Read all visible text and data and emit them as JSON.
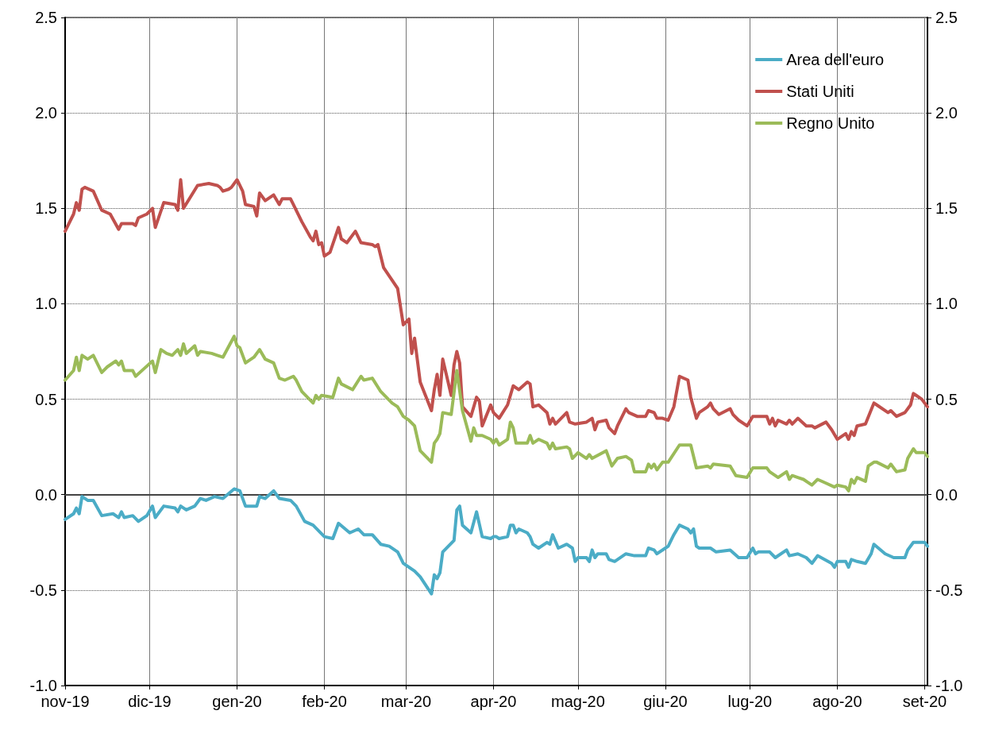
{
  "chart_data": {
    "type": "line",
    "xlim": [
      "2019-11-01",
      "2020-09-02"
    ],
    "xticks": [
      {
        "value": "2019-11-01",
        "label": "nov-19"
      },
      {
        "value": "2019-12-01",
        "label": "dic-19"
      },
      {
        "value": "2020-01-01",
        "label": "gen-20"
      },
      {
        "value": "2020-02-01",
        "label": "feb-20"
      },
      {
        "value": "2020-03-01",
        "label": "mar-20"
      },
      {
        "value": "2020-04-01",
        "label": "apr-20"
      },
      {
        "value": "2020-05-01",
        "label": "mag-20"
      },
      {
        "value": "2020-06-01",
        "label": "giu-20"
      },
      {
        "value": "2020-07-01",
        "label": "lug-20"
      },
      {
        "value": "2020-08-01",
        "label": "ago-20"
      },
      {
        "value": "2020-09-01",
        "label": "set-20"
      }
    ],
    "ylim": [
      -1,
      2.5
    ],
    "yticks": [
      {
        "value": -1,
        "label": "-1.0"
      },
      -0.5,
      {
        "value": 0,
        "label": "0.0"
      },
      0.5,
      {
        "value": 1,
        "label": "1.0"
      },
      1.5,
      {
        "value": 2,
        "label": "2.0"
      },
      2.5
    ],
    "y2lim": [
      -1,
      2.5
    ],
    "y2ticks": [
      {
        "value": -1,
        "label": "-1.0"
      },
      -0.5,
      {
        "value": 0,
        "label": "0.0"
      },
      0.5,
      {
        "value": 1,
        "label": "1.0"
      },
      1.5,
      {
        "value": 2,
        "label": "2.0"
      },
      2.5
    ],
    "grid": true,
    "legend": "top right",
    "marker": "none",
    "line_style": "solid",
    "series": [
      {
        "name": "Area dell'euro",
        "color": "#4bacc6",
        "x": [
          "2019-11-01",
          "2019-11-04",
          "2019-11-05",
          "2019-11-06",
          "2019-11-07",
          "2019-11-09",
          "2019-11-11",
          "2019-11-14",
          "2019-11-18",
          "2019-11-20",
          "2019-11-21",
          "2019-11-22",
          "2019-11-25",
          "2019-11-27",
          "2019-11-30",
          "2019-12-02",
          "2019-12-03",
          "2019-12-06",
          "2019-12-10",
          "2019-12-11",
          "2019-12-12",
          "2019-12-14",
          "2019-12-17",
          "2019-12-19",
          "2019-12-21",
          "2019-12-24",
          "2019-12-27",
          "2019-12-31",
          "2020-01-02",
          "2020-01-04",
          "2020-01-08",
          "2020-01-09",
          "2020-01-11",
          "2020-01-14",
          "2020-01-16",
          "2020-01-20",
          "2020-01-22",
          "2020-01-25",
          "2020-01-28",
          "2020-01-30",
          "2020-02-01",
          "2020-02-04",
          "2020-02-06",
          "2020-02-10",
          "2020-02-13",
          "2020-02-15",
          "2020-02-18",
          "2020-02-21",
          "2020-02-24",
          "2020-02-27",
          "2020-02-29",
          "2020-03-04",
          "2020-03-06",
          "2020-03-10",
          "2020-03-11",
          "2020-03-12",
          "2020-03-13",
          "2020-03-14",
          "2020-03-18",
          "2020-03-19",
          "2020-03-20",
          "2020-03-21",
          "2020-03-24",
          "2020-03-26",
          "2020-03-28",
          "2020-03-31",
          "2020-04-01",
          "2020-04-02",
          "2020-04-03",
          "2020-04-06",
          "2020-04-07",
          "2020-04-08",
          "2020-04-09",
          "2020-04-10",
          "2020-04-13",
          "2020-04-14",
          "2020-04-15",
          "2020-04-17",
          "2020-04-20",
          "2020-04-21",
          "2020-04-22",
          "2020-04-24",
          "2020-04-27",
          "2020-04-29",
          "2020-04-30",
          "2020-05-01",
          "2020-05-04",
          "2020-05-05",
          "2020-05-06",
          "2020-05-07",
          "2020-05-08",
          "2020-05-11",
          "2020-05-12",
          "2020-05-14",
          "2020-05-18",
          "2020-05-21",
          "2020-05-25",
          "2020-05-26",
          "2020-05-28",
          "2020-05-29",
          "2020-06-01",
          "2020-06-02",
          "2020-06-04",
          "2020-06-06",
          "2020-06-09",
          "2020-06-10",
          "2020-06-11",
          "2020-06-12",
          "2020-06-13",
          "2020-06-17",
          "2020-06-19",
          "2020-06-24",
          "2020-06-27",
          "2020-06-30",
          "2020-07-02",
          "2020-07-03",
          "2020-07-04",
          "2020-07-08",
          "2020-07-10",
          "2020-07-14",
          "2020-07-15",
          "2020-07-18",
          "2020-07-21",
          "2020-07-23",
          "2020-07-25",
          "2020-07-30",
          "2020-07-31",
          "2020-08-01",
          "2020-08-04",
          "2020-08-05",
          "2020-08-06",
          "2020-08-08",
          "2020-08-11",
          "2020-08-13",
          "2020-08-14",
          "2020-08-18",
          "2020-08-21",
          "2020-08-25",
          "2020-08-26",
          "2020-08-28",
          "2020-09-01",
          "2020-09-02"
        ],
        "values": [
          -0.13,
          -0.1,
          -0.07,
          -0.1,
          -0.01,
          -0.03,
          -0.03,
          -0.11,
          -0.1,
          -0.12,
          -0.09,
          -0.12,
          -0.11,
          -0.14,
          -0.11,
          -0.06,
          -0.12,
          -0.06,
          -0.07,
          -0.09,
          -0.06,
          -0.08,
          -0.06,
          -0.02,
          -0.03,
          -0.01,
          -0.02,
          0.03,
          0.02,
          -0.06,
          -0.06,
          -0.01,
          -0.02,
          0.02,
          -0.02,
          -0.03,
          -0.06,
          -0.14,
          -0.16,
          -0.19,
          -0.22,
          -0.23,
          -0.15,
          -0.2,
          -0.18,
          -0.21,
          -0.21,
          -0.26,
          -0.27,
          -0.3,
          -0.36,
          -0.4,
          -0.43,
          -0.52,
          -0.42,
          -0.44,
          -0.41,
          -0.3,
          -0.24,
          -0.08,
          -0.06,
          -0.16,
          -0.2,
          -0.09,
          -0.22,
          -0.23,
          -0.22,
          -0.22,
          -0.23,
          -0.22,
          -0.16,
          -0.16,
          -0.2,
          -0.18,
          -0.2,
          -0.22,
          -0.26,
          -0.28,
          -0.25,
          -0.26,
          -0.21,
          -0.28,
          -0.26,
          -0.28,
          -0.35,
          -0.33,
          -0.33,
          -0.35,
          -0.29,
          -0.33,
          -0.31,
          -0.31,
          -0.34,
          -0.35,
          -0.31,
          -0.32,
          -0.32,
          -0.28,
          -0.29,
          -0.31,
          -0.28,
          -0.27,
          -0.21,
          -0.16,
          -0.18,
          -0.2,
          -0.18,
          -0.27,
          -0.28,
          -0.28,
          -0.3,
          -0.29,
          -0.33,
          -0.33,
          -0.28,
          -0.31,
          -0.3,
          -0.3,
          -0.33,
          -0.29,
          -0.32,
          -0.31,
          -0.33,
          -0.36,
          -0.32,
          -0.36,
          -0.38,
          -0.35,
          -0.35,
          -0.38,
          -0.34,
          -0.35,
          -0.36,
          -0.31,
          -0.26,
          -0.31,
          -0.33,
          -0.33,
          -0.29,
          -0.25,
          -0.25,
          -0.27
        ]
      },
      {
        "name": "Stati Uniti",
        "color": "#c0504d",
        "x": [
          "2019-11-01",
          "2019-11-04",
          "2019-11-05",
          "2019-11-06",
          "2019-11-07",
          "2019-11-08",
          "2019-11-11",
          "2019-11-14",
          "2019-11-17",
          "2019-11-20",
          "2019-11-21",
          "2019-11-25",
          "2019-11-26",
          "2019-11-27",
          "2019-11-30",
          "2019-12-02",
          "2019-12-03",
          "2019-12-06",
          "2019-12-10",
          "2019-12-11",
          "2019-12-12",
          "2019-12-13",
          "2019-12-18",
          "2019-12-22",
          "2019-12-25",
          "2019-12-26",
          "2019-12-27",
          "2019-12-29",
          "2019-12-30",
          "2020-01-01",
          "2020-01-03",
          "2020-01-04",
          "2020-01-07",
          "2020-01-08",
          "2020-01-09",
          "2020-01-11",
          "2020-01-14",
          "2020-01-16",
          "2020-01-17",
          "2020-01-20",
          "2020-01-24",
          "2020-01-27",
          "2020-01-28",
          "2020-01-29",
          "2020-01-30",
          "2020-01-31",
          "2020-02-01",
          "2020-02-03",
          "2020-02-06",
          "2020-02-07",
          "2020-02-09",
          "2020-02-12",
          "2020-02-14",
          "2020-02-18",
          "2020-02-19",
          "2020-02-20",
          "2020-02-22",
          "2020-02-27",
          "2020-02-29",
          "2020-03-02",
          "2020-03-03",
          "2020-03-04",
          "2020-03-06",
          "2020-03-10",
          "2020-03-11",
          "2020-03-12",
          "2020-03-13",
          "2020-03-14",
          "2020-03-17",
          "2020-03-18",
          "2020-03-19",
          "2020-03-20",
          "2020-03-21",
          "2020-03-24",
          "2020-03-26",
          "2020-03-27",
          "2020-03-28",
          "2020-03-31",
          "2020-04-01",
          "2020-04-03",
          "2020-04-06",
          "2020-04-08",
          "2020-04-10",
          "2020-04-13",
          "2020-04-14",
          "2020-04-15",
          "2020-04-17",
          "2020-04-20",
          "2020-04-21",
          "2020-04-22",
          "2020-04-23",
          "2020-04-27",
          "2020-04-28",
          "2020-04-30",
          "2020-05-04",
          "2020-05-06",
          "2020-05-07",
          "2020-05-08",
          "2020-05-11",
          "2020-05-12",
          "2020-05-14",
          "2020-05-15",
          "2020-05-18",
          "2020-05-19",
          "2020-05-22",
          "2020-05-25",
          "2020-05-26",
          "2020-05-28",
          "2020-05-29",
          "2020-05-31",
          "2020-06-02",
          "2020-06-04",
          "2020-06-06",
          "2020-06-09",
          "2020-06-10",
          "2020-06-12",
          "2020-06-13",
          "2020-06-16",
          "2020-06-17",
          "2020-06-18",
          "2020-06-20",
          "2020-06-24",
          "2020-06-25",
          "2020-06-27",
          "2020-06-30",
          "2020-07-02",
          "2020-07-07",
          "2020-07-08",
          "2020-07-09",
          "2020-07-10",
          "2020-07-11",
          "2020-07-14",
          "2020-07-15",
          "2020-07-16",
          "2020-07-18",
          "2020-07-21",
          "2020-07-23",
          "2020-07-24",
          "2020-07-28",
          "2020-07-30",
          "2020-08-01",
          "2020-08-04",
          "2020-08-05",
          "2020-08-06",
          "2020-08-07",
          "2020-08-08",
          "2020-08-11",
          "2020-08-14",
          "2020-08-15",
          "2020-08-19",
          "2020-08-20",
          "2020-08-22",
          "2020-08-25",
          "2020-08-27",
          "2020-08-28",
          "2020-08-29",
          "2020-08-31",
          "2020-09-02"
        ],
        "values": [
          1.38,
          1.47,
          1.53,
          1.49,
          1.6,
          1.61,
          1.59,
          1.49,
          1.47,
          1.39,
          1.42,
          1.42,
          1.41,
          1.45,
          1.47,
          1.5,
          1.4,
          1.53,
          1.52,
          1.49,
          1.65,
          1.5,
          1.62,
          1.63,
          1.62,
          1.61,
          1.59,
          1.6,
          1.61,
          1.65,
          1.59,
          1.52,
          1.51,
          1.46,
          1.58,
          1.54,
          1.57,
          1.52,
          1.55,
          1.55,
          1.43,
          1.35,
          1.33,
          1.38,
          1.31,
          1.32,
          1.25,
          1.27,
          1.4,
          1.34,
          1.32,
          1.38,
          1.32,
          1.31,
          1.3,
          1.31,
          1.19,
          1.08,
          0.89,
          0.92,
          0.74,
          0.82,
          0.59,
          0.44,
          0.55,
          0.63,
          0.52,
          0.71,
          0.52,
          0.68,
          0.75,
          0.69,
          0.46,
          0.41,
          0.51,
          0.49,
          0.36,
          0.47,
          0.43,
          0.4,
          0.47,
          0.57,
          0.55,
          0.59,
          0.58,
          0.46,
          0.47,
          0.43,
          0.37,
          0.4,
          0.37,
          0.43,
          0.38,
          0.37,
          0.38,
          0.4,
          0.34,
          0.38,
          0.39,
          0.35,
          0.32,
          0.36,
          0.45,
          0.43,
          0.41,
          0.41,
          0.44,
          0.43,
          0.4,
          0.4,
          0.39,
          0.46,
          0.62,
          0.6,
          0.51,
          0.4,
          0.43,
          0.46,
          0.48,
          0.45,
          0.42,
          0.45,
          0.42,
          0.39,
          0.36,
          0.41,
          0.41,
          0.37,
          0.4,
          0.36,
          0.39,
          0.37,
          0.39,
          0.37,
          0.4,
          0.36,
          0.36,
          0.35,
          0.38,
          0.34,
          0.29,
          0.32,
          0.29,
          0.33,
          0.31,
          0.36,
          0.37,
          0.48,
          0.47,
          0.43,
          0.44,
          0.41,
          0.43,
          0.47,
          0.53,
          0.52,
          0.5,
          0.46
        ]
      },
      {
        "name": "Regno Unito",
        "color": "#9bbb59",
        "x": [
          "2019-11-01",
          "2019-11-04",
          "2019-11-05",
          "2019-11-06",
          "2019-11-07",
          "2019-11-09",
          "2019-11-11",
          "2019-11-14",
          "2019-11-16",
          "2019-11-19",
          "2019-11-20",
          "2019-11-21",
          "2019-11-22",
          "2019-11-25",
          "2019-11-26",
          "2019-11-29",
          "2019-12-02",
          "2019-12-03",
          "2019-12-05",
          "2019-12-07",
          "2019-12-09",
          "2019-12-11",
          "2019-12-12",
          "2019-12-13",
          "2019-12-14",
          "2019-12-17",
          "2019-12-18",
          "2019-12-19",
          "2019-12-23",
          "2019-12-25",
          "2019-12-27",
          "2019-12-31",
          "2020-01-01",
          "2020-01-02",
          "2020-01-04",
          "2020-01-07",
          "2020-01-09",
          "2020-01-11",
          "2020-01-14",
          "2020-01-16",
          "2020-01-18",
          "2020-01-21",
          "2020-01-22",
          "2020-01-24",
          "2020-01-28",
          "2020-01-29",
          "2020-01-30",
          "2020-01-31",
          "2020-02-04",
          "2020-02-06",
          "2020-02-07",
          "2020-02-11",
          "2020-02-14",
          "2020-02-15",
          "2020-02-18",
          "2020-02-21",
          "2020-02-25",
          "2020-02-27",
          "2020-02-29",
          "2020-03-02",
          "2020-03-04",
          "2020-03-06",
          "2020-03-10",
          "2020-03-11",
          "2020-03-12",
          "2020-03-13",
          "2020-03-14",
          "2020-03-17",
          "2020-03-19",
          "2020-03-21",
          "2020-03-24",
          "2020-03-25",
          "2020-03-26",
          "2020-03-28",
          "2020-03-31",
          "2020-04-01",
          "2020-04-02",
          "2020-04-03",
          "2020-04-06",
          "2020-04-07",
          "2020-04-08",
          "2020-04-09",
          "2020-04-13",
          "2020-04-14",
          "2020-04-15",
          "2020-04-17",
          "2020-04-20",
          "2020-04-21",
          "2020-04-22",
          "2020-04-23",
          "2020-04-27",
          "2020-04-28",
          "2020-04-29",
          "2020-05-01",
          "2020-05-04",
          "2020-05-05",
          "2020-05-06",
          "2020-05-11",
          "2020-05-13",
          "2020-05-15",
          "2020-05-18",
          "2020-05-20",
          "2020-05-21",
          "2020-05-25",
          "2020-05-26",
          "2020-05-27",
          "2020-05-28",
          "2020-05-29",
          "2020-05-31",
          "2020-06-02",
          "2020-06-06",
          "2020-06-10",
          "2020-06-12",
          "2020-06-16",
          "2020-06-17",
          "2020-06-18",
          "2020-06-24",
          "2020-06-26",
          "2020-06-30",
          "2020-07-02",
          "2020-07-07",
          "2020-07-08",
          "2020-07-11",
          "2020-07-14",
          "2020-07-15",
          "2020-07-16",
          "2020-07-18",
          "2020-07-20",
          "2020-07-23",
          "2020-07-25",
          "2020-07-28",
          "2020-07-31",
          "2020-08-01",
          "2020-08-04",
          "2020-08-05",
          "2020-08-06",
          "2020-08-07",
          "2020-08-08",
          "2020-08-11",
          "2020-08-12",
          "2020-08-14",
          "2020-08-15",
          "2020-08-19",
          "2020-08-20",
          "2020-08-22",
          "2020-08-25",
          "2020-08-26",
          "2020-08-28",
          "2020-08-29",
          "2020-09-01",
          "2020-09-02"
        ],
        "values": [
          0.6,
          0.65,
          0.72,
          0.65,
          0.73,
          0.71,
          0.73,
          0.64,
          0.67,
          0.7,
          0.68,
          0.7,
          0.65,
          0.65,
          0.62,
          0.66,
          0.7,
          0.64,
          0.76,
          0.74,
          0.73,
          0.76,
          0.73,
          0.79,
          0.74,
          0.78,
          0.73,
          0.75,
          0.74,
          0.73,
          0.72,
          0.83,
          0.78,
          0.77,
          0.69,
          0.72,
          0.76,
          0.71,
          0.69,
          0.61,
          0.6,
          0.62,
          0.6,
          0.54,
          0.48,
          0.52,
          0.5,
          0.52,
          0.51,
          0.61,
          0.58,
          0.55,
          0.62,
          0.6,
          0.61,
          0.54,
          0.48,
          0.46,
          0.41,
          0.39,
          0.36,
          0.23,
          0.17,
          0.27,
          0.29,
          0.32,
          0.43,
          0.42,
          0.65,
          0.44,
          0.28,
          0.35,
          0.31,
          0.31,
          0.29,
          0.27,
          0.29,
          0.26,
          0.29,
          0.38,
          0.35,
          0.27,
          0.27,
          0.31,
          0.27,
          0.29,
          0.27,
          0.24,
          0.27,
          0.24,
          0.25,
          0.24,
          0.19,
          0.22,
          0.19,
          0.21,
          0.19,
          0.23,
          0.15,
          0.19,
          0.2,
          0.18,
          0.12,
          0.12,
          0.16,
          0.14,
          0.16,
          0.13,
          0.17,
          0.17,
          0.26,
          0.26,
          0.14,
          0.15,
          0.14,
          0.16,
          0.15,
          0.1,
          0.09,
          0.14,
          0.14,
          0.12,
          0.09,
          0.12,
          0.08,
          0.1,
          0.09,
          0.08,
          0.05,
          0.08,
          0.06,
          0.04,
          0.05,
          0.04,
          0.02,
          0.08,
          0.06,
          0.09,
          0.07,
          0.15,
          0.17,
          0.17,
          0.14,
          0.16,
          0.12,
          0.13,
          0.19,
          0.24,
          0.22,
          0.22,
          0.2
        ]
      }
    ]
  }
}
